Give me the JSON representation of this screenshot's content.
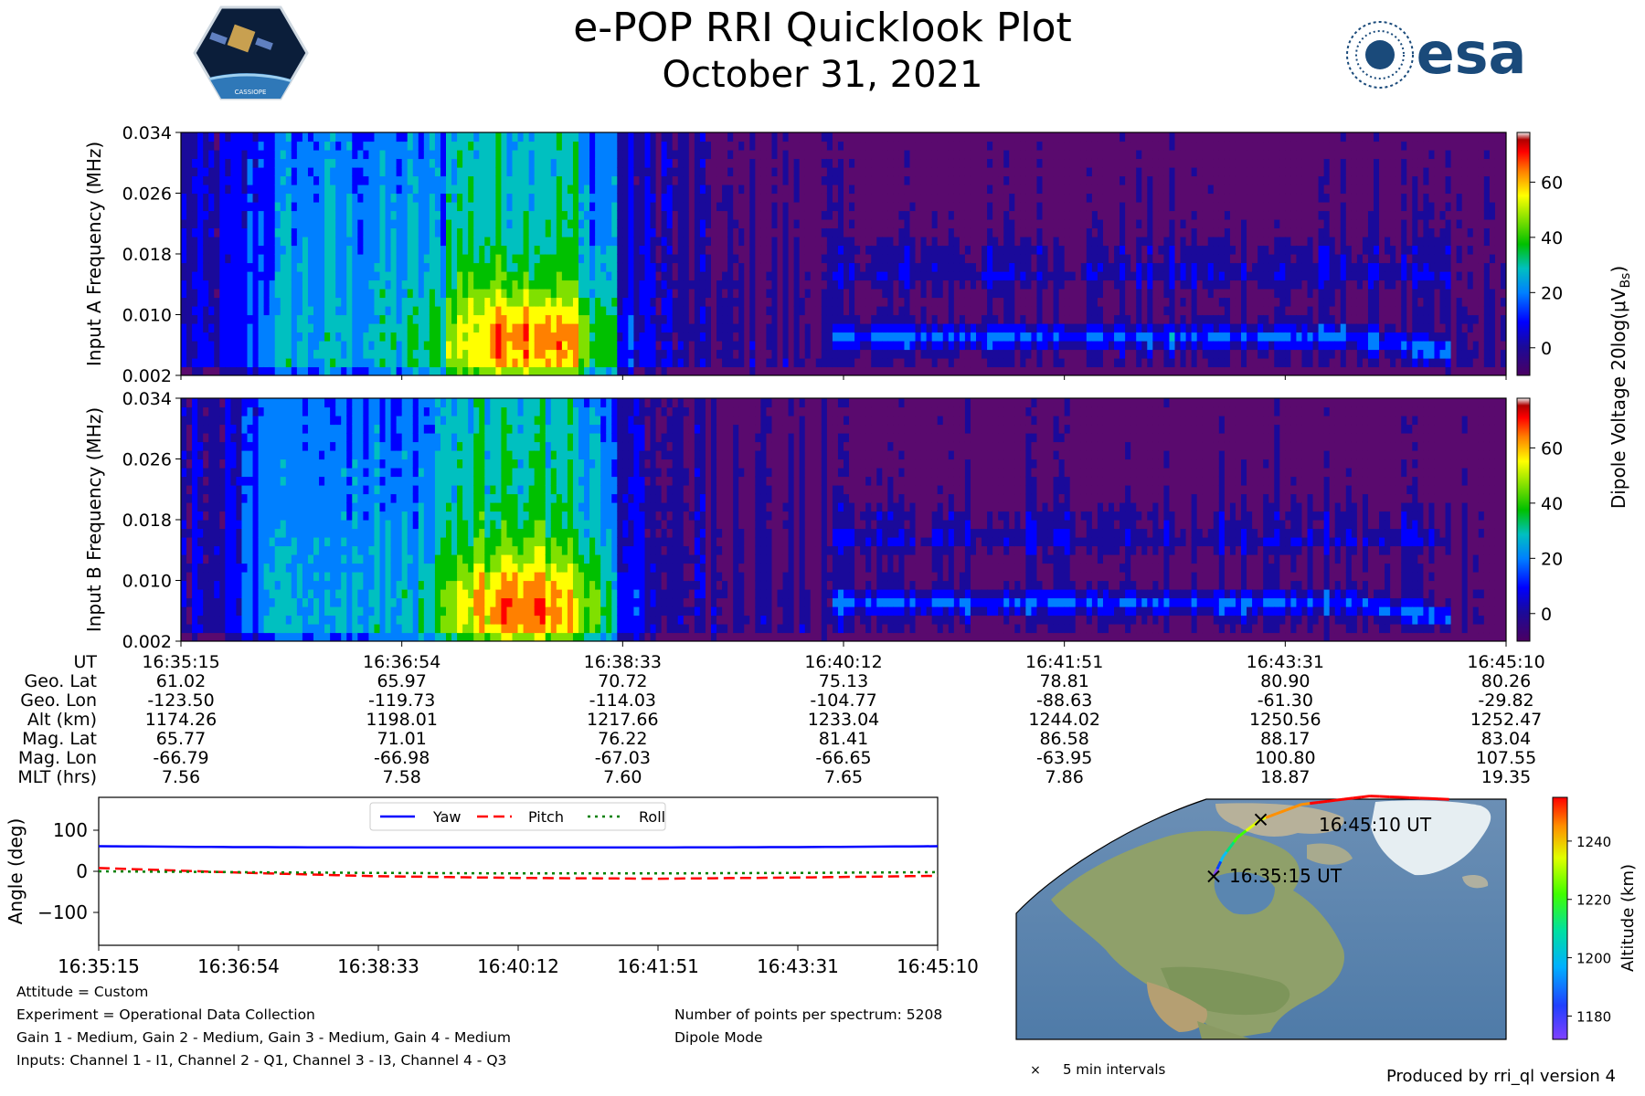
{
  "header": {
    "title": "e-POP RRI Quicklook Plot",
    "date": "October 31, 2021",
    "mission_logo_text": "CASSIOPE",
    "agency_logo_text": "esa"
  },
  "chart_data": [
    {
      "type": "heatmap",
      "name": "input-a-spectrogram",
      "ylabel": "Input A Frequency (MHz)",
      "yticks": [
        "0.002",
        "0.010",
        "0.018",
        "0.026",
        "0.034"
      ],
      "ylim": [
        0.002,
        0.034
      ],
      "colorbar_ticks": [
        0,
        20,
        40,
        60
      ],
      "colorbar_range": [
        -10,
        78
      ]
    },
    {
      "type": "heatmap",
      "name": "input-b-spectrogram",
      "ylabel": "Input B Frequency (MHz)",
      "yticks": [
        "0.002",
        "0.010",
        "0.018",
        "0.026",
        "0.034"
      ],
      "ylim": [
        0.002,
        0.034
      ],
      "colorbar_ticks": [
        0,
        20,
        40,
        60
      ],
      "colorbar_range": [
        -10,
        78
      ]
    },
    {
      "type": "line",
      "name": "attitude",
      "ylabel": "Angle (deg)",
      "ylim": [
        -180,
        180
      ],
      "yticks": [
        "100",
        "0",
        "−100"
      ],
      "x": [
        "16:35:15",
        "16:36:54",
        "16:38:33",
        "16:40:12",
        "16:41:51",
        "16:43:31",
        "16:45:10"
      ],
      "legend_position": "top-center",
      "series": [
        {
          "name": "Yaw",
          "color": "#0000ff",
          "style": "solid",
          "values": [
            61,
            59,
            58,
            58,
            58,
            59,
            61
          ]
        },
        {
          "name": "Pitch",
          "color": "#ff0000",
          "style": "dashed",
          "values": [
            8,
            -3,
            -12,
            -16,
            -18,
            -15,
            -11
          ]
        },
        {
          "name": "Roll",
          "color": "#008000",
          "style": "dotted",
          "values": [
            0,
            -2,
            -4,
            -5,
            -5,
            -4,
            -2
          ]
        }
      ]
    },
    {
      "type": "scatter",
      "name": "orbit-track-map",
      "track_lat": [
        61.02,
        65.97,
        70.72,
        75.13,
        78.81,
        80.9,
        80.26
      ],
      "track_lon": [
        -123.5,
        -119.73,
        -114.03,
        -104.77,
        -88.63,
        -61.3,
        -29.82
      ],
      "track_alt": [
        1174.26,
        1198.01,
        1217.66,
        1233.04,
        1244.02,
        1250.56,
        1252.47
      ],
      "start_label": "16:35:15 UT",
      "end_label": "16:45:10 UT",
      "colorbar_label": "Altitude (km)",
      "colorbar_ticks": [
        1180,
        1200,
        1220,
        1240
      ],
      "colorbar_range": [
        1172,
        1255
      ],
      "legend_text": "5 min intervals"
    }
  ],
  "colorbar_label": "Dipole Voltage 20log(μV",
  "colorbar_label_sub": "Bs",
  "colorbar_label_end": ")",
  "ephemeris": {
    "labels": [
      "UT",
      "Geo. Lat",
      "Geo. Lon",
      "Alt (km)",
      "Mag. Lat",
      "Mag. Lon",
      "MLT (hrs)"
    ],
    "columns": [
      [
        "16:35:15",
        "61.02",
        "-123.50",
        "1174.26",
        "65.77",
        "-66.79",
        "7.56"
      ],
      [
        "16:36:54",
        "65.97",
        "-119.73",
        "1198.01",
        "71.01",
        "-66.98",
        "7.58"
      ],
      [
        "16:38:33",
        "70.72",
        "-114.03",
        "1217.66",
        "76.22",
        "-67.03",
        "7.60"
      ],
      [
        "16:40:12",
        "75.13",
        "-104.77",
        "1233.04",
        "81.41",
        "-66.65",
        "7.65"
      ],
      [
        "16:41:51",
        "78.81",
        "-88.63",
        "1244.02",
        "86.58",
        "-63.95",
        "7.86"
      ],
      [
        "16:43:31",
        "80.90",
        "-61.30",
        "1250.56",
        "88.17",
        "100.80",
        "18.87"
      ],
      [
        "16:45:10",
        "80.26",
        "-29.82",
        "1252.47",
        "83.04",
        "107.55",
        "19.35"
      ]
    ]
  },
  "notes": {
    "left": [
      "Attitude = Custom",
      "Experiment = Operational Data Collection",
      "Gain 1 - Medium, Gain 2 - Medium, Gain 3 - Medium, Gain 4 - Medium",
      "Inputs: Channel 1 - I1, Channel 2 - Q1, Channel 3 - I3, Channel 4 - Q3"
    ],
    "right": [
      "Number of points per spectrum: 5208",
      "Dipole Mode"
    ],
    "footer": "Produced by rri_ql version 4"
  },
  "colors": {
    "jet": [
      "#5a0a6e",
      "#1a0a9a",
      "#0000ff",
      "#0080ff",
      "#00c0c0",
      "#00c000",
      "#80e000",
      "#ffff00",
      "#ff8000",
      "#ff0000",
      "#a00000",
      "#f0f0f0"
    ],
    "rainbow": [
      "#8040ff",
      "#0040ff",
      "#00c0ff",
      "#00e080",
      "#40ff00",
      "#e0ff00",
      "#ff9000",
      "#ff0000"
    ]
  }
}
